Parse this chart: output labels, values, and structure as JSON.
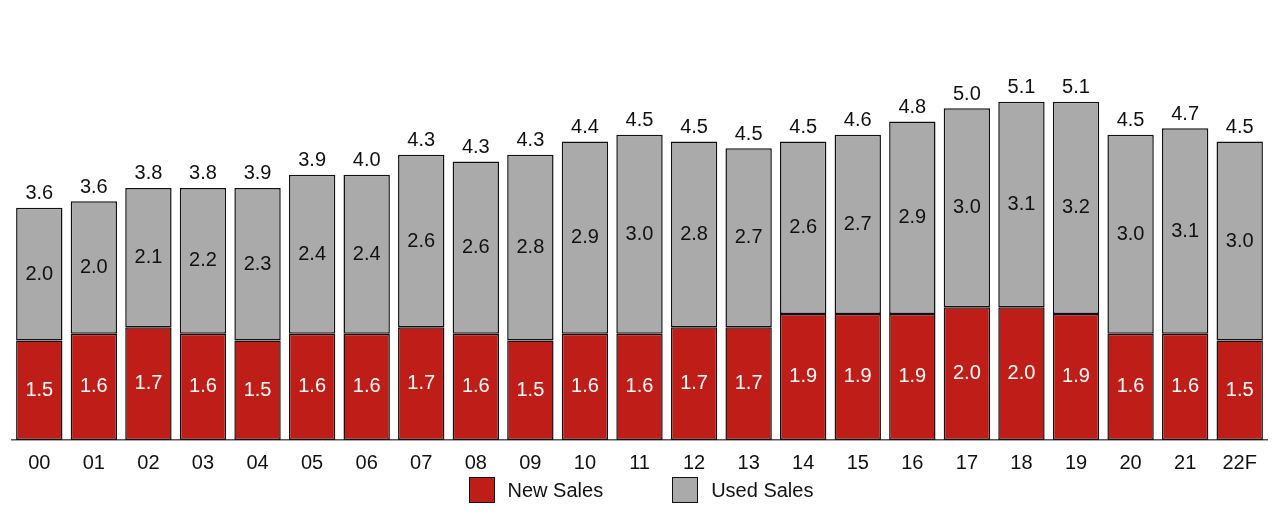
{
  "chart_data": {
    "type": "bar",
    "stacked": true,
    "categories": [
      "00",
      "01",
      "02",
      "03",
      "04",
      "05",
      "06",
      "07",
      "08",
      "09",
      "10",
      "11",
      "12",
      "13",
      "14",
      "15",
      "16",
      "17",
      "18",
      "19",
      "20",
      "21",
      "22F"
    ],
    "series": [
      {
        "name": "New Sales",
        "color": "#be1e17",
        "values": [
          1.5,
          1.6,
          1.7,
          1.6,
          1.5,
          1.6,
          1.6,
          1.7,
          1.6,
          1.5,
          1.6,
          1.6,
          1.7,
          1.7,
          1.9,
          1.9,
          1.9,
          2.0,
          2.0,
          1.9,
          1.6,
          1.6,
          1.5
        ],
        "value_labels": [
          "1.5",
          "1.6",
          "1.7",
          "1.6",
          "1.5",
          "1.6",
          "1.6",
          "1.7",
          "1.6",
          "1.5",
          "1.6",
          "1.6",
          "1.7",
          "1.7",
          "1.9",
          "1.9",
          "1.9",
          "2.0",
          "2.0",
          "1.9",
          "1.6",
          "1.6",
          "1.5"
        ]
      },
      {
        "name": "Used Sales",
        "color": "#aaaaaa",
        "values": [
          2.0,
          2.0,
          2.1,
          2.2,
          2.3,
          2.4,
          2.4,
          2.6,
          2.6,
          2.8,
          2.9,
          3.0,
          2.8,
          2.7,
          2.6,
          2.7,
          2.9,
          3.0,
          3.1,
          3.2,
          3.0,
          3.1,
          3.0
        ],
        "value_labels": [
          "2.0",
          "2.0",
          "2.1",
          "2.2",
          "2.3",
          "2.4",
          "2.4",
          "2.6",
          "2.6",
          "2.8",
          "2.9",
          "3.0",
          "2.8",
          "2.7",
          "2.6",
          "2.7",
          "2.9",
          "3.0",
          "3.1",
          "3.2",
          "3.0",
          "3.1",
          "3.0"
        ]
      }
    ],
    "totals": [
      "3.6",
      "3.6",
      "3.8",
      "3.8",
      "3.9",
      "3.9",
      "4.0",
      "4.3",
      "4.3",
      "4.3",
      "4.4",
      "4.5",
      "4.5",
      "4.5",
      "4.5",
      "4.6",
      "4.8",
      "5.0",
      "5.1",
      "5.1",
      "4.5",
      "4.7",
      "4.5"
    ],
    "legend": "bottom",
    "grid": false
  }
}
